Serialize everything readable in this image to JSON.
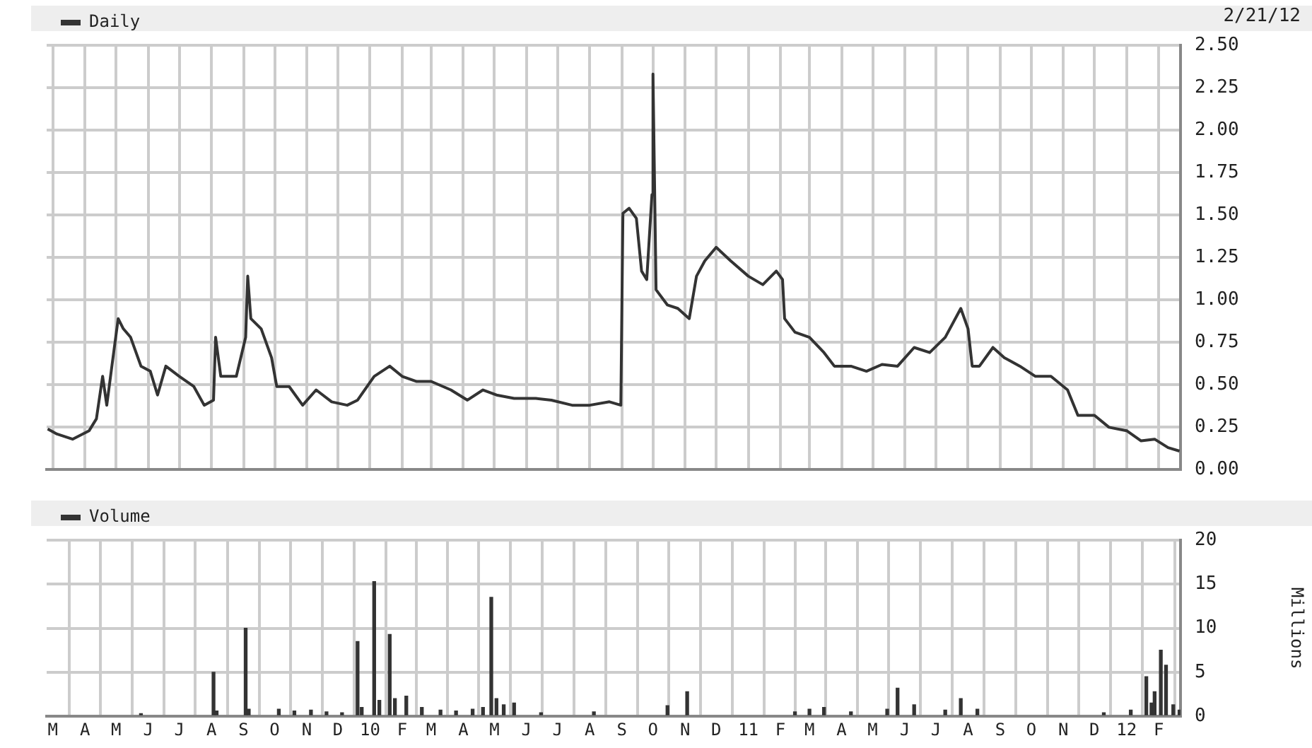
{
  "chart_data": [
    {
      "type": "line",
      "legend": "top left",
      "grid": true,
      "tick_labels": "y",
      "annotations": [
        "2/21/12"
      ],
      "xlim": [
        "2009-02-23",
        "2012-02-22"
      ],
      "xticks": [
        {
          "value": "2009-03-01",
          "label": null
        },
        {
          "value": "2009-04-01",
          "label": null
        },
        {
          "value": "2009-05-01",
          "label": null
        },
        {
          "value": "2009-06-01",
          "label": null
        },
        {
          "value": "2009-07-01",
          "label": null
        },
        {
          "value": "2009-08-01",
          "label": null
        },
        {
          "value": "2009-09-01",
          "label": null
        },
        {
          "value": "2009-10-01",
          "label": null
        },
        {
          "value": "2009-11-01",
          "label": null
        },
        {
          "value": "2009-12-01",
          "label": null
        },
        {
          "value": "2010-01-01",
          "label": null
        },
        {
          "value": "2010-02-01",
          "label": null
        },
        {
          "value": "2010-03-01",
          "label": null
        },
        {
          "value": "2010-04-01",
          "label": null
        },
        {
          "value": "2010-05-01",
          "label": null
        },
        {
          "value": "2010-06-01",
          "label": null
        },
        {
          "value": "2010-07-01",
          "label": null
        },
        {
          "value": "2010-08-01",
          "label": null
        },
        {
          "value": "2010-09-01",
          "label": null
        },
        {
          "value": "2010-10-01",
          "label": null
        },
        {
          "value": "2010-11-01",
          "label": null
        },
        {
          "value": "2010-12-01",
          "label": null
        },
        {
          "value": "2011-01-01",
          "label": null
        },
        {
          "value": "2011-02-01",
          "label": null
        },
        {
          "value": "2011-03-01",
          "label": null
        },
        {
          "value": "2011-04-01",
          "label": null
        },
        {
          "value": "2011-05-01",
          "label": null
        },
        {
          "value": "2011-06-01",
          "label": null
        },
        {
          "value": "2011-07-01",
          "label": null
        },
        {
          "value": "2011-08-01",
          "label": null
        },
        {
          "value": "2011-09-01",
          "label": null
        },
        {
          "value": "2011-10-01",
          "label": null
        },
        {
          "value": "2011-11-01",
          "label": null
        },
        {
          "value": "2011-12-01",
          "label": null
        },
        {
          "value": "2012-01-01",
          "label": null
        },
        {
          "value": "2012-02-01",
          "label": null
        }
      ],
      "ylim": [
        0,
        2.5
      ],
      "yticks": [
        {
          "value": 0,
          "label": "0.00"
        },
        {
          "value": 0.25,
          "label": "0.25"
        },
        {
          "value": 0.5,
          "label": "0.50"
        },
        {
          "value": 0.75,
          "label": "0.75"
        },
        {
          "value": 1,
          "label": "1.00"
        },
        {
          "value": 1.25,
          "label": "1.25"
        },
        {
          "value": 1.5,
          "label": "1.50"
        },
        {
          "value": 1.75,
          "label": "1.75"
        },
        {
          "value": 2,
          "label": "2.00"
        },
        {
          "value": 2.25,
          "label": "2.25"
        },
        {
          "value": 2.5,
          "label": "2.50"
        }
      ],
      "series": [
        {
          "name": "Daily",
          "color": "#333333",
          "x": [
            "2009-02-24",
            "2009-03-05",
            "2009-03-20",
            "2009-04-05",
            "2009-04-12",
            "2009-04-18",
            "2009-04-22",
            "2009-04-28",
            "2009-05-03",
            "2009-05-08",
            "2009-05-15",
            "2009-05-25",
            "2009-06-03",
            "2009-06-10",
            "2009-06-18",
            "2009-07-01",
            "2009-07-15",
            "2009-07-25",
            "2009-08-03",
            "2009-08-05",
            "2009-08-10",
            "2009-08-25",
            "2009-09-03",
            "2009-09-05",
            "2009-09-08",
            "2009-09-18",
            "2009-09-28",
            "2009-10-03",
            "2009-10-15",
            "2009-10-28",
            "2009-11-10",
            "2009-11-25",
            "2009-12-10",
            "2009-12-20",
            "2010-01-05",
            "2010-01-20",
            "2010-02-01",
            "2010-02-15",
            "2010-03-01",
            "2010-03-20",
            "2010-04-05",
            "2010-04-20",
            "2010-05-03",
            "2010-05-20",
            "2010-06-10",
            "2010-06-25",
            "2010-07-15",
            "2010-08-01",
            "2010-08-20",
            "2010-08-31",
            "2010-09-02",
            "2010-09-08",
            "2010-09-15",
            "2010-09-20",
            "2010-09-25",
            "2010-09-30",
            "2010-10-01",
            "2010-10-04",
            "2010-10-15",
            "2010-10-25",
            "2010-11-05",
            "2010-11-12",
            "2010-11-20",
            "2010-12-01",
            "2010-12-15",
            "2011-01-01",
            "2011-01-15",
            "2011-01-28",
            "2011-02-03",
            "2011-02-05",
            "2011-02-15",
            "2011-03-01",
            "2011-03-15",
            "2011-03-25",
            "2011-04-10",
            "2011-04-25",
            "2011-05-10",
            "2011-05-25",
            "2011-06-10",
            "2011-06-25",
            "2011-07-10",
            "2011-07-25",
            "2011-08-01",
            "2011-08-05",
            "2011-08-12",
            "2011-08-25",
            "2011-09-05",
            "2011-09-20",
            "2011-10-05",
            "2011-10-20",
            "2011-11-05",
            "2011-11-15",
            "2011-12-01",
            "2011-12-15",
            "2012-01-01",
            "2012-01-15",
            "2012-01-28",
            "2012-02-10",
            "2012-02-21"
          ],
          "values": [
            0.24,
            0.21,
            0.18,
            0.23,
            0.3,
            0.55,
            0.38,
            0.66,
            0.89,
            0.83,
            0.78,
            0.61,
            0.58,
            0.44,
            0.61,
            0.55,
            0.49,
            0.38,
            0.41,
            0.78,
            0.55,
            0.55,
            0.78,
            1.14,
            0.89,
            0.83,
            0.66,
            0.49,
            0.49,
            0.38,
            0.47,
            0.4,
            0.38,
            0.41,
            0.55,
            0.61,
            0.55,
            0.52,
            0.52,
            0.47,
            0.41,
            0.47,
            0.44,
            0.42,
            0.42,
            0.41,
            0.38,
            0.38,
            0.4,
            0.38,
            1.51,
            1.54,
            1.48,
            1.17,
            1.12,
            1.62,
            2.33,
            1.06,
            0.97,
            0.95,
            0.89,
            1.14,
            1.23,
            1.31,
            1.23,
            1.14,
            1.09,
            1.17,
            1.12,
            0.89,
            0.81,
            0.78,
            0.69,
            0.61,
            0.61,
            0.58,
            0.62,
            0.61,
            0.72,
            0.69,
            0.78,
            0.95,
            0.83,
            0.61,
            0.61,
            0.72,
            0.66,
            0.61,
            0.55,
            0.55,
            0.47,
            0.32,
            0.32,
            0.25,
            0.23,
            0.17,
            0.18,
            0.13,
            0.11
          ]
        }
      ]
    },
    {
      "type": "bar",
      "legend": "top left",
      "grid": true,
      "ylabel": "Millions",
      "xlim": [
        "2009-02-23",
        "2012-02-22"
      ],
      "xticks": [
        {
          "value": "2009-03-01",
          "label": "M"
        },
        {
          "value": "2009-04-01",
          "label": "A"
        },
        {
          "value": "2009-05-01",
          "label": "M"
        },
        {
          "value": "2009-06-01",
          "label": "J"
        },
        {
          "value": "2009-07-01",
          "label": "J"
        },
        {
          "value": "2009-08-01",
          "label": "A"
        },
        {
          "value": "2009-09-01",
          "label": "S"
        },
        {
          "value": "2009-10-01",
          "label": "O"
        },
        {
          "value": "2009-11-01",
          "label": "N"
        },
        {
          "value": "2009-12-01",
          "label": "D"
        },
        {
          "value": "2010-01-01",
          "label": "10"
        },
        {
          "value": "2010-02-01",
          "label": "F"
        },
        {
          "value": "2010-03-01",
          "label": "M"
        },
        {
          "value": "2010-04-01",
          "label": "A"
        },
        {
          "value": "2010-05-01",
          "label": "M"
        },
        {
          "value": "2010-06-01",
          "label": "J"
        },
        {
          "value": "2010-07-01",
          "label": "J"
        },
        {
          "value": "2010-08-01",
          "label": "A"
        },
        {
          "value": "2010-09-01",
          "label": "S"
        },
        {
          "value": "2010-10-01",
          "label": "O"
        },
        {
          "value": "2010-11-01",
          "label": "N"
        },
        {
          "value": "2010-12-01",
          "label": "D"
        },
        {
          "value": "2011-01-01",
          "label": "11"
        },
        {
          "value": "2011-02-01",
          "label": "F"
        },
        {
          "value": "2011-03-01",
          "label": "M"
        },
        {
          "value": "2011-04-01",
          "label": "A"
        },
        {
          "value": "2011-05-01",
          "label": "M"
        },
        {
          "value": "2011-06-01",
          "label": "J"
        },
        {
          "value": "2011-07-01",
          "label": "J"
        },
        {
          "value": "2011-08-01",
          "label": "A"
        },
        {
          "value": "2011-09-01",
          "label": "S"
        },
        {
          "value": "2011-10-01",
          "label": "O"
        },
        {
          "value": "2011-11-01",
          "label": "N"
        },
        {
          "value": "2011-12-01",
          "label": "D"
        },
        {
          "value": "2012-01-01",
          "label": "12"
        },
        {
          "value": "2012-02-01",
          "label": "F"
        }
      ],
      "ylim": [
        0,
        20
      ],
      "yticks": [
        0,
        5,
        10,
        15,
        20
      ],
      "series": [
        {
          "name": "Volume",
          "color": "#333333",
          "x": [
            "2009-05-25",
            "2009-08-03",
            "2009-08-06",
            "2009-09-03",
            "2009-09-06",
            "2009-10-05",
            "2009-10-20",
            "2009-11-05",
            "2009-11-20",
            "2009-12-05",
            "2009-12-20",
            "2009-12-24",
            "2010-01-05",
            "2010-01-10",
            "2010-01-20",
            "2010-01-25",
            "2010-02-05",
            "2010-02-20",
            "2010-03-10",
            "2010-03-25",
            "2010-04-10",
            "2010-04-20",
            "2010-04-28",
            "2010-05-03",
            "2010-05-10",
            "2010-05-20",
            "2010-06-15",
            "2010-08-05",
            "2010-10-15",
            "2010-11-03",
            "2011-02-15",
            "2011-03-01",
            "2011-03-15",
            "2011-04-10",
            "2011-05-15",
            "2011-05-25",
            "2011-06-10",
            "2011-07-10",
            "2011-07-25",
            "2011-08-10",
            "2011-12-10",
            "2012-01-05",
            "2012-01-20",
            "2012-01-25",
            "2012-01-28",
            "2012-02-03",
            "2012-02-08",
            "2012-02-15",
            "2012-02-21"
          ],
          "values": [
            0.3,
            5,
            0.6,
            10,
            0.8,
            0.8,
            0.6,
            0.7,
            0.5,
            0.4,
            8.5,
            1,
            15.3,
            1.8,
            9.3,
            2,
            2.3,
            1,
            0.7,
            0.6,
            0.8,
            1,
            13.5,
            2,
            1.3,
            1.5,
            0.4,
            0.5,
            1.2,
            2.8,
            0.5,
            0.8,
            1,
            0.5,
            0.8,
            3.2,
            1.3,
            0.7,
            2,
            0.8,
            0.4,
            0.7,
            4.5,
            1.5,
            2.8,
            7.5,
            5.8,
            1.3,
            0.7
          ]
        }
      ]
    }
  ]
}
